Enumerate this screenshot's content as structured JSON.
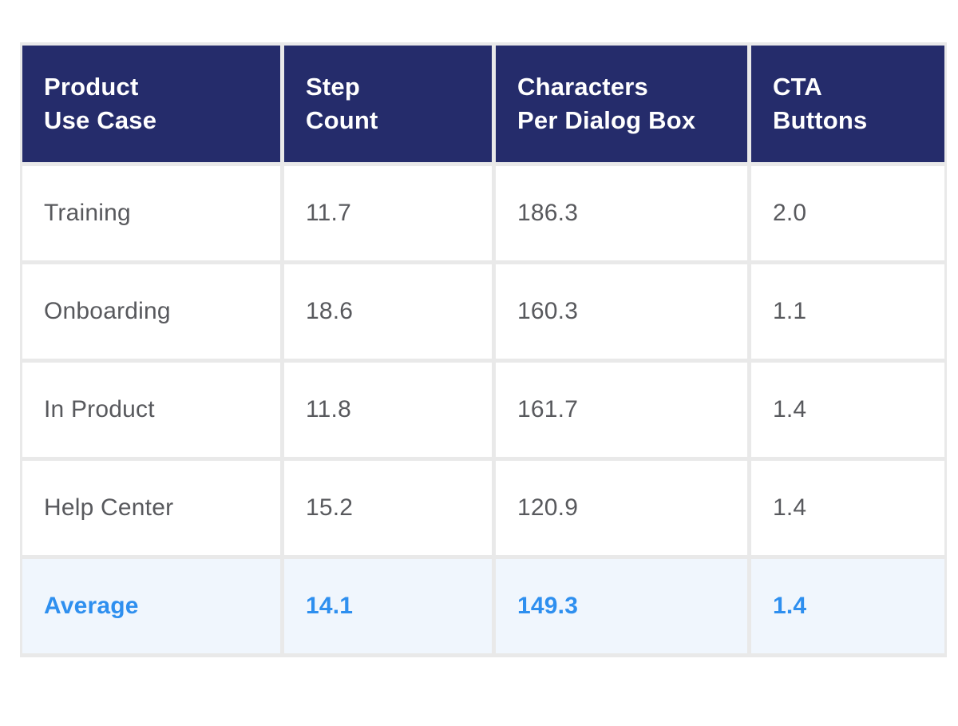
{
  "colors": {
    "header_bg": "#252c6b",
    "header_text": "#ffffff",
    "row_bg": "#ffffff",
    "body_text": "#58595d",
    "average_row_bg": "#f0f6fd",
    "average_text": "#2e8fef",
    "grid_line": "#e9e9e9",
    "page_bg": "#ffffff"
  },
  "chart_data": {
    "type": "table",
    "columns": [
      {
        "label": "Product\nUse Case"
      },
      {
        "label": "Step\nCount"
      },
      {
        "label": "Characters\nPer Dialog Box"
      },
      {
        "label": "CTA\nButtons"
      }
    ],
    "rows": [
      {
        "cells": [
          "Training",
          "11.7",
          "186.3",
          "2.0"
        ]
      },
      {
        "cells": [
          "Onboarding",
          "18.6",
          "160.3",
          "1.1"
        ]
      },
      {
        "cells": [
          "In Product",
          "11.8",
          "161.7",
          "1.4"
        ]
      },
      {
        "cells": [
          "Help Center",
          "15.2",
          "120.9",
          "1.4"
        ]
      }
    ],
    "footer": {
      "cells": [
        "Average",
        "14.1",
        "149.3",
        "1.4"
      ]
    }
  }
}
